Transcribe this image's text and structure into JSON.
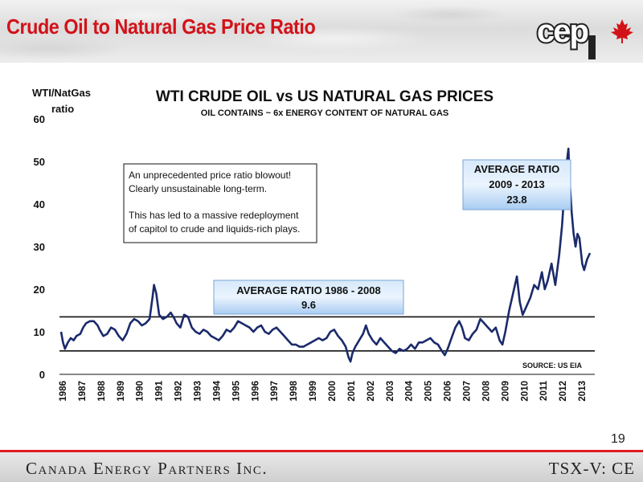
{
  "slide": {
    "title": "Crude Oil to Natural Gas Price Ratio",
    "page_number": "19",
    "footer_company": "Canada Energy Partners Inc.",
    "footer_ticker": "TSX-V: CE",
    "logo_text": "cep",
    "title_color": "#d21219"
  },
  "chart_data": {
    "type": "line",
    "title": "WTI CRUDE OIL vs US NATURAL GAS PRICES",
    "subtitle": "OIL CONTAINS ~ 6x ENERGY CONTENT OF NATURAL GAS",
    "ylabel_line1": "WTI/NatGas",
    "ylabel_line2": "ratio",
    "source": "SOURCE:  US EIA",
    "ylim": [
      0,
      60
    ],
    "yticks": [
      0,
      10,
      20,
      30,
      40,
      50,
      60
    ],
    "xlim": [
      1986,
      2013.75
    ],
    "xticks": [
      "1986",
      "1987",
      "1988",
      "1989",
      "1990",
      "1991",
      "1992",
      "1993",
      "1994",
      "1995",
      "1996",
      "1997",
      "1998",
      "1999",
      "2000",
      "2001",
      "2002",
      "2003",
      "2004",
      "2005",
      "2006",
      "2007",
      "2008",
      "2009",
      "2010",
      "2011",
      "2012",
      "2013"
    ],
    "series_color": "#1b2a6b",
    "series": [
      {
        "values": [
          [
            1986.0,
            10
          ],
          [
            1986.1,
            7.5
          ],
          [
            1986.2,
            6
          ],
          [
            1986.35,
            7.5
          ],
          [
            1986.5,
            8.5
          ],
          [
            1986.65,
            8
          ],
          [
            1986.8,
            9
          ],
          [
            1987.0,
            9.5
          ],
          [
            1987.15,
            11
          ],
          [
            1987.3,
            12
          ],
          [
            1987.5,
            12.5
          ],
          [
            1987.7,
            12.5
          ],
          [
            1987.9,
            11.5
          ],
          [
            1988.0,
            10.5
          ],
          [
            1988.2,
            9
          ],
          [
            1988.4,
            9.5
          ],
          [
            1988.6,
            11
          ],
          [
            1988.8,
            10.5
          ],
          [
            1989.0,
            9
          ],
          [
            1989.2,
            8
          ],
          [
            1989.4,
            9.5
          ],
          [
            1989.6,
            12
          ],
          [
            1989.8,
            13
          ],
          [
            1990.0,
            12.5
          ],
          [
            1990.2,
            11.5
          ],
          [
            1990.4,
            12
          ],
          [
            1990.6,
            13
          ],
          [
            1990.75,
            18
          ],
          [
            1990.83,
            21
          ],
          [
            1990.95,
            19
          ],
          [
            1991.1,
            14
          ],
          [
            1991.3,
            13
          ],
          [
            1991.5,
            13.5
          ],
          [
            1991.7,
            14.5
          ],
          [
            1991.9,
            13
          ],
          [
            1992.0,
            12
          ],
          [
            1992.2,
            11
          ],
          [
            1992.4,
            14
          ],
          [
            1992.6,
            13.5
          ],
          [
            1992.8,
            11
          ],
          [
            1993.0,
            10
          ],
          [
            1993.2,
            9.5
          ],
          [
            1993.4,
            10.5
          ],
          [
            1993.6,
            10
          ],
          [
            1993.8,
            9
          ],
          [
            1994.0,
            8.5
          ],
          [
            1994.2,
            8
          ],
          [
            1994.4,
            9
          ],
          [
            1994.6,
            10.5
          ],
          [
            1994.8,
            10
          ],
          [
            1995.0,
            11
          ],
          [
            1995.2,
            12.5
          ],
          [
            1995.4,
            12
          ],
          [
            1995.6,
            11.5
          ],
          [
            1995.8,
            11
          ],
          [
            1996.0,
            10
          ],
          [
            1996.2,
            11
          ],
          [
            1996.4,
            11.5
          ],
          [
            1996.6,
            10
          ],
          [
            1996.8,
            9.5
          ],
          [
            1997.0,
            10.5
          ],
          [
            1997.2,
            11
          ],
          [
            1997.4,
            10
          ],
          [
            1997.6,
            9
          ],
          [
            1997.8,
            8
          ],
          [
            1998.0,
            7
          ],
          [
            1998.2,
            7
          ],
          [
            1998.4,
            6.5
          ],
          [
            1998.6,
            6.5
          ],
          [
            1998.8,
            7
          ],
          [
            1999.0,
            7.5
          ],
          [
            1999.2,
            8
          ],
          [
            1999.4,
            8.5
          ],
          [
            1999.6,
            8
          ],
          [
            1999.8,
            8.5
          ],
          [
            2000.0,
            10
          ],
          [
            2000.2,
            10.5
          ],
          [
            2000.4,
            9
          ],
          [
            2000.6,
            8
          ],
          [
            2000.8,
            6.5
          ],
          [
            2000.95,
            4
          ],
          [
            2001.05,
            3
          ],
          [
            2001.15,
            5
          ],
          [
            2001.3,
            6.5
          ],
          [
            2001.5,
            8
          ],
          [
            2001.7,
            9.5
          ],
          [
            2001.85,
            11.5
          ],
          [
            2002.0,
            9.5
          ],
          [
            2002.2,
            8
          ],
          [
            2002.4,
            7
          ],
          [
            2002.6,
            8.5
          ],
          [
            2002.8,
            7.5
          ],
          [
            2003.0,
            6.5
          ],
          [
            2003.2,
            5.5
          ],
          [
            2003.4,
            5
          ],
          [
            2003.6,
            6
          ],
          [
            2003.8,
            5.5
          ],
          [
            2004.0,
            6
          ],
          [
            2004.2,
            7
          ],
          [
            2004.4,
            6
          ],
          [
            2004.6,
            7.5
          ],
          [
            2004.8,
            7.5
          ],
          [
            2005.0,
            8
          ],
          [
            2005.2,
            8.5
          ],
          [
            2005.4,
            7.5
          ],
          [
            2005.6,
            7
          ],
          [
            2005.8,
            5.5
          ],
          [
            2005.95,
            4.5
          ],
          [
            2006.1,
            6
          ],
          [
            2006.3,
            8.5
          ],
          [
            2006.5,
            11
          ],
          [
            2006.7,
            12.5
          ],
          [
            2006.85,
            11
          ],
          [
            2007.0,
            8.5
          ],
          [
            2007.2,
            8
          ],
          [
            2007.4,
            9.5
          ],
          [
            2007.6,
            10.5
          ],
          [
            2007.8,
            13
          ],
          [
            2008.0,
            12
          ],
          [
            2008.2,
            11
          ],
          [
            2008.4,
            10
          ],
          [
            2008.6,
            11
          ],
          [
            2008.8,
            8
          ],
          [
            2008.95,
            7
          ],
          [
            2009.1,
            10
          ],
          [
            2009.3,
            15
          ],
          [
            2009.5,
            19
          ],
          [
            2009.7,
            23
          ],
          [
            2009.85,
            17
          ],
          [
            2010.0,
            14
          ],
          [
            2010.2,
            16
          ],
          [
            2010.4,
            18
          ],
          [
            2010.6,
            21
          ],
          [
            2010.8,
            20
          ],
          [
            2011.0,
            24
          ],
          [
            2011.15,
            20
          ],
          [
            2011.3,
            22
          ],
          [
            2011.5,
            26
          ],
          [
            2011.7,
            21
          ],
          [
            2011.9,
            28
          ],
          [
            2012.05,
            35
          ],
          [
            2012.2,
            45
          ],
          [
            2012.3,
            50
          ],
          [
            2012.38,
            53
          ],
          [
            2012.45,
            45
          ],
          [
            2012.55,
            38
          ],
          [
            2012.65,
            33
          ],
          [
            2012.75,
            30
          ],
          [
            2012.85,
            33
          ],
          [
            2012.95,
            32
          ],
          [
            2013.1,
            26
          ],
          [
            2013.2,
            24.5
          ],
          [
            2013.35,
            27
          ],
          [
            2013.5,
            28.5
          ]
        ]
      }
    ],
    "reference_lines": [
      {
        "label": "AVERAGE RATIO 1986 - 2008",
        "value": "9.6",
        "y": 13.5
      },
      {
        "label": "",
        "value": "",
        "y": 5.5
      }
    ],
    "avg_box_2009": {
      "label1": "AVERAGE RATIO",
      "label2": "2009 - 2013",
      "value": "23.8"
    },
    "annotation": {
      "line1": "An unprecedented price ratio blowout!",
      "line2": "Clearly unsustainable long-term.",
      "line3": "This has led to a massive redeployment",
      "line4": "of capitol to crude and liquids-rich plays."
    },
    "grid": false,
    "legend": "none"
  }
}
